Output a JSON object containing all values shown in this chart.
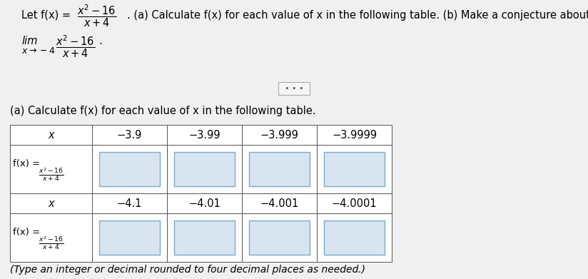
{
  "background_color": "#f0f0f0",
  "top_bg": "#f0f0f0",
  "part_a_label": "(a) Calculate f(x) for each value of x in the following table.",
  "col_headers_row1": [
    "x",
    "−3.9",
    "−3.99",
    "−3.999",
    "−3.9999"
  ],
  "col_headers_row2": [
    "x",
    "−4.1",
    "−4.01",
    "−4.001",
    "−4.0001"
  ],
  "footer_text": "(Type an integer or decimal rounded to four decimal places as needed.)",
  "table_bg": "#ffffff",
  "table_border": "#555555",
  "input_box_bg": "#d8e4f0",
  "input_box_border": "#7aaad0",
  "divider_text": "• • •"
}
